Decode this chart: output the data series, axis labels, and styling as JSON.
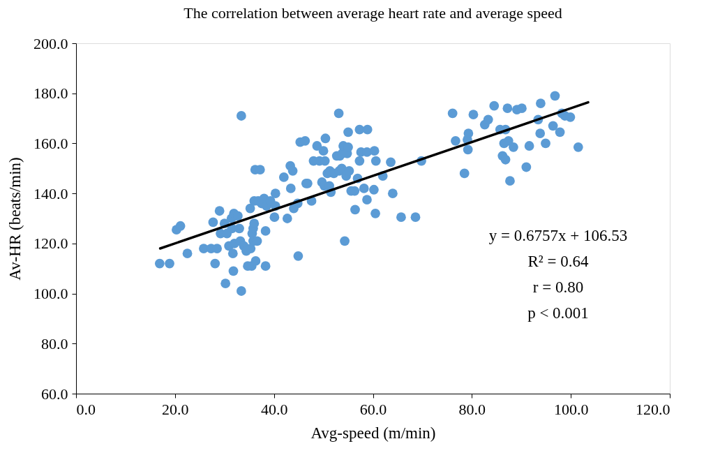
{
  "chart_data": {
    "type": "scatter",
    "title": "The correlation between average heart rate and average speed",
    "xlabel": "Avg-speed (m/min)",
    "ylabel": "Av-HR (beats/min)",
    "xlim": [
      0,
      120
    ],
    "ylim": [
      60,
      200
    ],
    "xticks": [
      {
        "value": 0,
        "label": "0.0"
      },
      {
        "value": 20,
        "label": "20.0"
      },
      {
        "value": 40,
        "label": "40.0"
      },
      {
        "value": 60,
        "label": "60.0"
      },
      {
        "value": 80,
        "label": "80.0"
      },
      {
        "value": 100,
        "label": "100.0"
      },
      {
        "value": 120,
        "label": "120.0"
      }
    ],
    "yticks": [
      {
        "value": 60,
        "label": "60.0"
      },
      {
        "value": 80,
        "label": "80.0"
      },
      {
        "value": 100,
        "label": "100.0"
      },
      {
        "value": 120,
        "label": "120.0"
      },
      {
        "value": 140,
        "label": "140.0"
      },
      {
        "value": 160,
        "label": "160.0"
      },
      {
        "value": 180,
        "label": "180.0"
      },
      {
        "value": 200,
        "label": "200.0"
      }
    ],
    "grid": false,
    "series": [
      {
        "color": "#5b9bd5",
        "marker": "circle",
        "x": [
          16.9,
          18.9,
          20.3,
          21.1,
          22.5,
          25.8,
          27.3,
          27.7,
          28.1,
          28.5,
          29,
          29.2,
          30,
          30.2,
          30.5,
          30.9,
          31.4,
          31.5,
          31.7,
          31.8,
          31.9,
          32,
          32.7,
          33,
          33.2,
          33.4,
          33.4,
          33.9,
          34.4,
          34.7,
          35.2,
          35.3,
          35.5,
          35.6,
          35.8,
          35.8,
          36,
          36,
          36.2,
          36.3,
          36.6,
          36.8,
          37.2,
          37.5,
          38,
          38.3,
          38.3,
          38.5,
          39.3,
          40.1,
          40.3,
          40.3,
          42,
          42.7,
          43.3,
          43.4,
          43.8,
          44,
          44.8,
          44.9,
          45.3,
          46.3,
          46.5,
          46.8,
          47.6,
          48,
          48.7,
          49.2,
          49.7,
          50,
          50.2,
          50.3,
          50.4,
          50.8,
          51.2,
          51.3,
          51.5,
          52.1,
          52.7,
          53.1,
          53.2,
          53.3,
          53.7,
          53.8,
          54,
          54.3,
          54.6,
          54.8,
          55,
          55,
          55.2,
          55.6,
          56.3,
          56.4,
          56.9,
          57.3,
          57.3,
          57.6,
          58.2,
          58.8,
          58.9,
          58.8,
          60.2,
          60.3,
          60.5,
          60.6,
          62,
          63.6,
          64,
          65.7,
          68.6,
          69.8,
          76.1,
          76.7,
          78.5,
          79.2,
          79.1,
          79.3,
          80.3,
          82.6,
          83.3,
          84.5,
          85.7,
          86.2,
          86.5,
          86.8,
          86.8,
          87.2,
          87.4,
          87.7,
          88.4,
          89.1,
          90.1,
          91,
          91.6,
          93.4,
          93.8,
          93.9,
          94.9,
          96.4,
          96.8,
          97.8,
          98.2,
          98.8,
          99.9,
          101.5
        ],
        "values": [
          112,
          112,
          125.5,
          127,
          116,
          118,
          118,
          128.5,
          112,
          118,
          133,
          124,
          128,
          104,
          124,
          119,
          130,
          126,
          116,
          109,
          132,
          120,
          131,
          126,
          121,
          101,
          171,
          119,
          117,
          111,
          134,
          118,
          111,
          124,
          126,
          121,
          128,
          137,
          149.5,
          113,
          121,
          137,
          149.5,
          136,
          138,
          111,
          125,
          135,
          137,
          130.5,
          140,
          135,
          146.5,
          130,
          151,
          142,
          149,
          134,
          136,
          115,
          160.5,
          161,
          144,
          144,
          137,
          153,
          159,
          153,
          144.5,
          157,
          143,
          153,
          162,
          148,
          143,
          149,
          140.5,
          148,
          155,
          172,
          149,
          155,
          150,
          156,
          159,
          121,
          147,
          156,
          164.5,
          158.5,
          149,
          141,
          141,
          133.5,
          146,
          153,
          165.5,
          156.5,
          142,
          137.5,
          165.5,
          156.5,
          141.5,
          157,
          132,
          153,
          147,
          152.5,
          140,
          130.5,
          130.5,
          153,
          172,
          161,
          148,
          157.5,
          161.5,
          164,
          171.5,
          167.5,
          169.5,
          175,
          165.5,
          155,
          160,
          165.5,
          153.5,
          174,
          161,
          145,
          158.5,
          173.5,
          174,
          150.5,
          159,
          169.5,
          164,
          176,
          160,
          167,
          179,
          164.5,
          172,
          171,
          170.5,
          158.5
        ]
      },
      {
        "type": "line",
        "marker": "none",
        "color": "#000000",
        "x": [
          17,
          103.5
        ],
        "values": [
          118.0,
          176.4
        ]
      }
    ],
    "annotations": [
      "y = 0.6757x + 106.53",
      "R² = 0.64",
      "r = 0.80",
      "p < 0.001"
    ]
  }
}
